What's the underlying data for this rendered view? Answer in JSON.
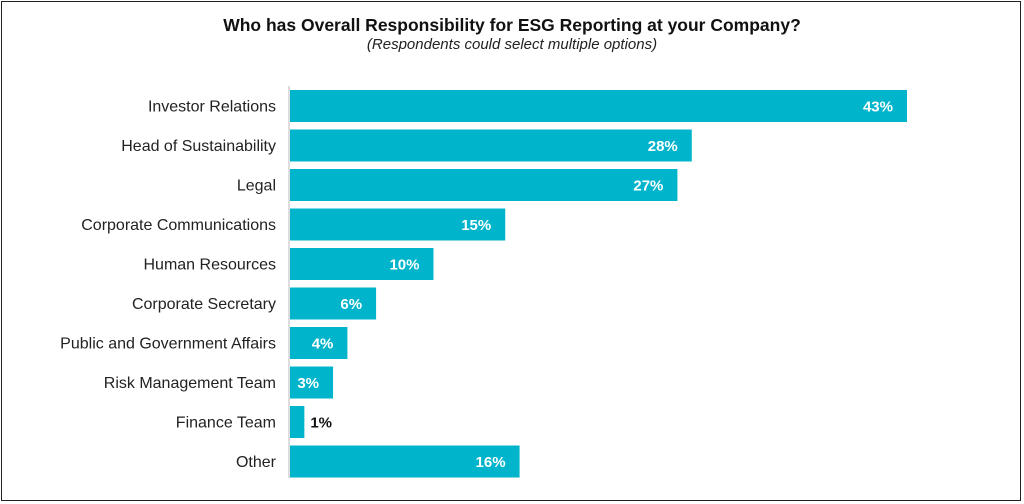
{
  "chart_data": {
    "type": "bar",
    "orientation": "horizontal",
    "title": "Who has Overall Responsibility  for ESG Reporting at your Company?",
    "subtitle": "(Respondents could select multiple options)",
    "categories": [
      "Investor Relations",
      "Head of Sustainability",
      "Legal",
      "Corporate Communications",
      "Human Resources",
      "Corporate Secretary",
      "Public and Government Affairs",
      "Risk Management Team",
      "Finance Team",
      "Other"
    ],
    "values": [
      43,
      28,
      27,
      15,
      10,
      6,
      4,
      3,
      1,
      16
    ],
    "value_labels": [
      "43%",
      "28%",
      "27%",
      "15%",
      "10%",
      "6%",
      "4%",
      "3%",
      "1%",
      "16%"
    ],
    "xlabel": "",
    "ylabel": "",
    "xlim": [
      0,
      43
    ],
    "unit": "%",
    "bar_color": "#00b4cc",
    "grid": false,
    "legend": "none"
  }
}
